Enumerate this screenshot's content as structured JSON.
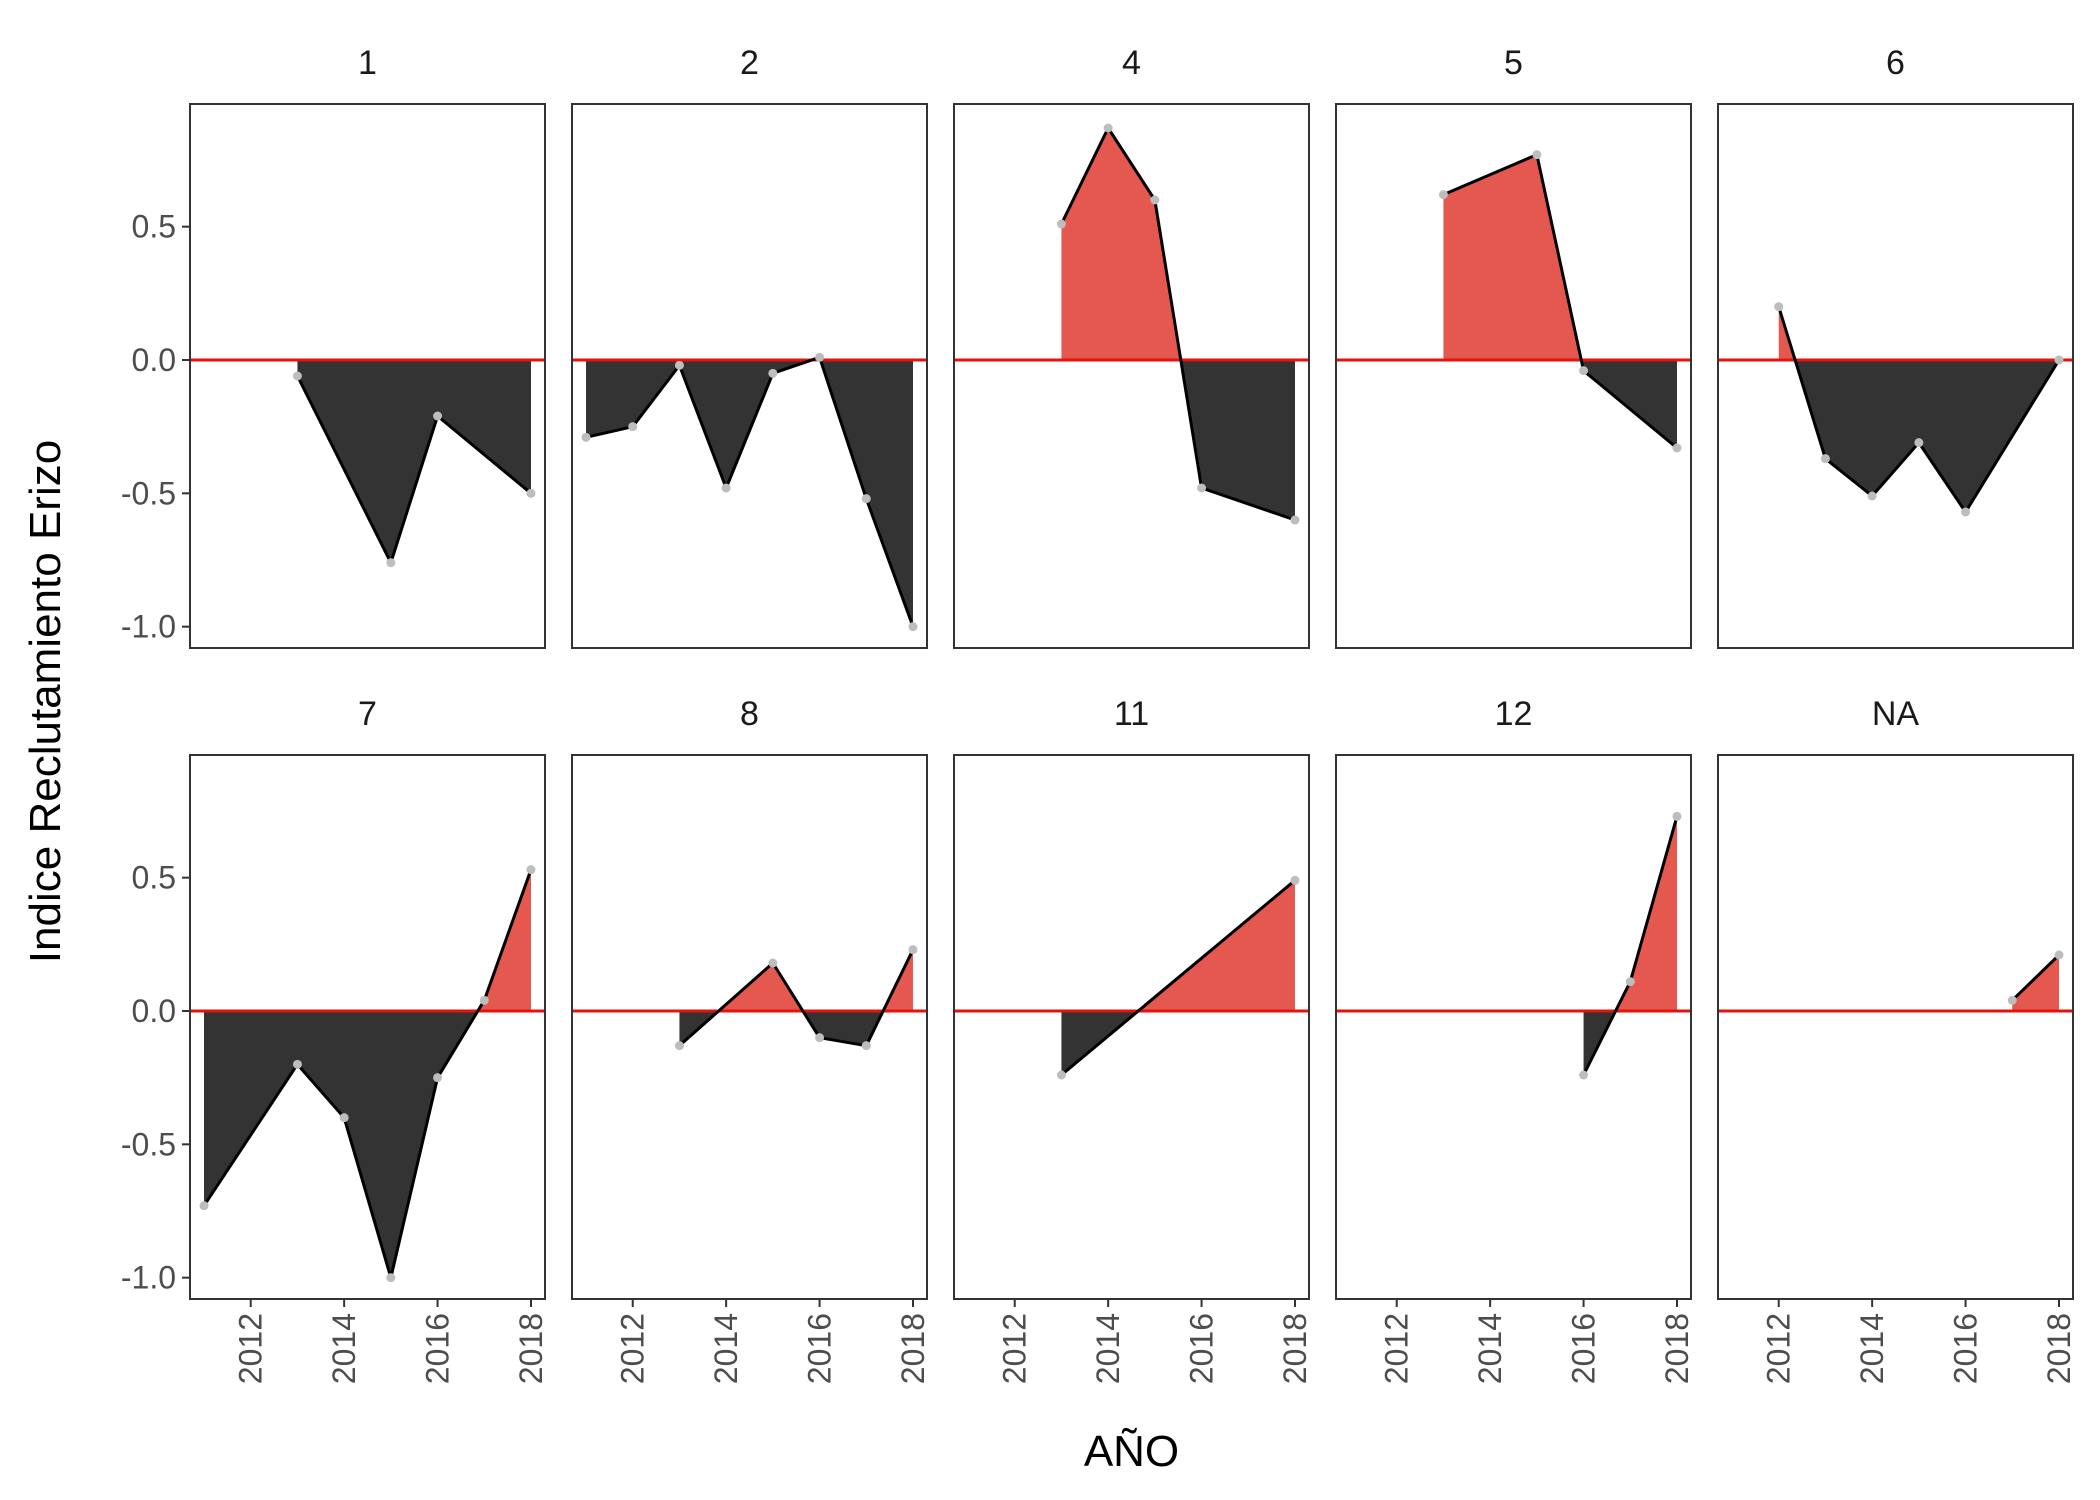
{
  "chart_data": {
    "type": "area",
    "xlabel": "AÑO",
    "ylabel": "Indice Reclutamiento Erizo",
    "xlim": [
      2010.7,
      2018.3
    ],
    "ylim": [
      -1.08,
      0.96
    ],
    "x_ticks": [
      2012,
      2014,
      2016,
      2018
    ],
    "y_ticks": [
      0.5,
      0.0,
      -0.5,
      -1.0
    ],
    "y_tick_labels": [
      "0.5",
      "0.0",
      "-0.5",
      "-1.0"
    ],
    "grid": false,
    "legend": "none",
    "reference_line": 0,
    "colors": {
      "positive_fill": "#e45850",
      "negative_fill": "#333333",
      "line": "#000000",
      "reference_line": "#e8120c",
      "point": "#bdbdbd"
    },
    "facets": [
      {
        "title": "1",
        "x": [
          2013,
          2015,
          2016,
          2018
        ],
        "y": [
          -0.06,
          -0.76,
          -0.21,
          -0.5
        ]
      },
      {
        "title": "2",
        "x": [
          2011,
          2012,
          2013,
          2014,
          2015,
          2016,
          2017,
          2018
        ],
        "y": [
          -0.29,
          -0.25,
          -0.02,
          -0.48,
          -0.05,
          0.01,
          -0.52,
          -1.0
        ]
      },
      {
        "title": "4",
        "x": [
          2013,
          2014,
          2015,
          2016,
          2018
        ],
        "y": [
          0.51,
          0.87,
          0.6,
          -0.48,
          -0.6
        ]
      },
      {
        "title": "5",
        "x": [
          2013,
          2015,
          2016,
          2018
        ],
        "y": [
          0.62,
          0.77,
          -0.04,
          -0.33
        ]
      },
      {
        "title": "6",
        "x": [
          2012,
          2013,
          2014,
          2015,
          2016,
          2018
        ],
        "y": [
          0.2,
          -0.37,
          -0.51,
          -0.31,
          -0.57,
          0.0
        ]
      },
      {
        "title": "7",
        "x": [
          2011,
          2013,
          2014,
          2015,
          2016,
          2017,
          2018
        ],
        "y": [
          -0.73,
          -0.2,
          -0.4,
          -1.0,
          -0.25,
          0.04,
          0.53
        ]
      },
      {
        "title": "8",
        "x": [
          2013,
          2015,
          2016,
          2017,
          2018
        ],
        "y": [
          -0.13,
          0.18,
          -0.1,
          -0.13,
          0.23
        ]
      },
      {
        "title": "11",
        "x": [
          2013,
          2018
        ],
        "y": [
          -0.24,
          0.49
        ]
      },
      {
        "title": "12",
        "x": [
          2016,
          2017,
          2018
        ],
        "y": [
          -0.24,
          0.11,
          0.73
        ]
      },
      {
        "title": "NA",
        "x": [
          2017,
          2018
        ],
        "y": [
          0.04,
          0.21
        ]
      }
    ]
  }
}
